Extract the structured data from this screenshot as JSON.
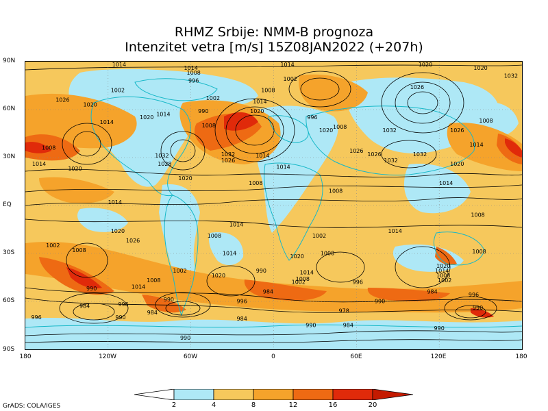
{
  "title_line1": "RHMZ Srbije: NMM-B prognoza",
  "title_line2": "Intenzitet vetra [m/s] 15Z08JAN2022 (+207h)",
  "lat_labels": [
    "90N",
    "60N",
    "30N",
    "EQ",
    "30S",
    "60S",
    "90S"
  ],
  "lon_labels": [
    "180",
    "120W",
    "60W",
    "0",
    "60E",
    "120E",
    "180"
  ],
  "colorbar": {
    "labels": [
      "2",
      "4",
      "8",
      "12",
      "16",
      "20"
    ],
    "colors": [
      "#ffffff",
      "#aee8f6",
      "#f6c85c",
      "#f5a32b",
      "#ee6a13",
      "#e02a0a",
      "#c41a00"
    ]
  },
  "isobar_labels": [
    {
      "text": "1014",
      "lon": -112,
      "lat": 88
    },
    {
      "text": "1014",
      "lon": -60,
      "lat": 86
    },
    {
      "text": "1008",
      "lon": -58,
      "lat": 83
    },
    {
      "text": "1014",
      "lon": 10,
      "lat": 88
    },
    {
      "text": "1020",
      "lon": 110,
      "lat": 88
    },
    {
      "text": "1020",
      "lon": 150,
      "lat": 86
    },
    {
      "text": "1032",
      "lon": 172,
      "lat": 81
    },
    {
      "text": "996",
      "lon": -58,
      "lat": 78
    },
    {
      "text": "1002",
      "lon": -113,
      "lat": 72
    },
    {
      "text": "1002",
      "lon": -44,
      "lat": 67
    },
    {
      "text": "1002",
      "lon": 12,
      "lat": 79
    },
    {
      "text": "1026",
      "lon": 104,
      "lat": 74
    },
    {
      "text": "1008",
      "lon": -4,
      "lat": 72
    },
    {
      "text": "1014",
      "lon": -10,
      "lat": 65
    },
    {
      "text": "1020",
      "lon": -12,
      "lat": 59
    },
    {
      "text": "990",
      "lon": -51,
      "lat": 59
    },
    {
      "text": "1014",
      "lon": -80,
      "lat": 57
    },
    {
      "text": "1020",
      "lon": -92,
      "lat": 55
    },
    {
      "text": "996",
      "lon": 28,
      "lat": 55
    },
    {
      "text": "1026",
      "lon": -153,
      "lat": 66
    },
    {
      "text": "1020",
      "lon": -133,
      "lat": 63
    },
    {
      "text": "1014",
      "lon": -121,
      "lat": 52
    },
    {
      "text": "1008",
      "lon": -47,
      "lat": 50
    },
    {
      "text": "1020",
      "lon": 38,
      "lat": 47
    },
    {
      "text": "1008",
      "lon": 48,
      "lat": 49
    },
    {
      "text": "1032",
      "lon": 84,
      "lat": 47
    },
    {
      "text": "1026",
      "lon": 133,
      "lat": 47
    },
    {
      "text": "1008",
      "lon": 154,
      "lat": 53
    },
    {
      "text": "1032",
      "lon": -33,
      "lat": 32
    },
    {
      "text": "1026",
      "lon": -33,
      "lat": 28
    },
    {
      "text": "1014",
      "lon": -8,
      "lat": 31
    },
    {
      "text": "1026",
      "lon": 60,
      "lat": 34
    },
    {
      "text": "1026",
      "lon": 73,
      "lat": 32
    },
    {
      "text": "1032",
      "lon": 106,
      "lat": 32
    },
    {
      "text": "1032",
      "lon": 85,
      "lat": 28
    },
    {
      "text": "1020",
      "lon": 133,
      "lat": 26
    },
    {
      "text": "1014",
      "lon": 147,
      "lat": 38
    },
    {
      "text": "1032",
      "lon": -81,
      "lat": 31
    },
    {
      "text": "1028",
      "lon": -79,
      "lat": 26
    },
    {
      "text": "1008",
      "lon": -163,
      "lat": 36
    },
    {
      "text": "1014",
      "lon": -170,
      "lat": 26
    },
    {
      "text": "1020",
      "lon": -144,
      "lat": 23
    },
    {
      "text": "1020",
      "lon": -64,
      "lat": 17
    },
    {
      "text": "1014",
      "lon": 7,
      "lat": 24
    },
    {
      "text": "1008",
      "lon": -13,
      "lat": 14
    },
    {
      "text": "1008",
      "lon": 45,
      "lat": 9
    },
    {
      "text": "1014",
      "lon": 125,
      "lat": 14
    },
    {
      "text": "1014",
      "lon": -115,
      "lat": 2
    },
    {
      "text": "1014",
      "lon": -27,
      "lat": -12
    },
    {
      "text": "1008",
      "lon": -43,
      "lat": -19
    },
    {
      "text": "1002",
      "lon": 33,
      "lat": -19
    },
    {
      "text": "1014",
      "lon": 88,
      "lat": -16
    },
    {
      "text": "1008",
      "lon": 148,
      "lat": -6
    },
    {
      "text": "1020",
      "lon": -113,
      "lat": -16
    },
    {
      "text": "1026",
      "lon": -102,
      "lat": -22
    },
    {
      "text": "1002",
      "lon": -160,
      "lat": -25
    },
    {
      "text": "1008",
      "lon": -141,
      "lat": -28
    },
    {
      "text": "1014",
      "lon": -32,
      "lat": -30
    },
    {
      "text": "1020",
      "lon": 17,
      "lat": -32
    },
    {
      "text": "1008",
      "lon": 39,
      "lat": -30
    },
    {
      "text": "1008",
      "lon": 149,
      "lat": -29
    },
    {
      "text": "1002",
      "lon": -68,
      "lat": -41
    },
    {
      "text": "1008",
      "lon": -87,
      "lat": -47
    },
    {
      "text": "1014",
      "lon": -98,
      "lat": -51
    },
    {
      "text": "1020",
      "lon": -40,
      "lat": -44
    },
    {
      "text": "990",
      "lon": -9,
      "lat": -41
    },
    {
      "text": "1014",
      "lon": 24,
      "lat": -42
    },
    {
      "text": "1008",
      "lon": 21,
      "lat": -46
    },
    {
      "text": "1002",
      "lon": 18,
      "lat": -48
    },
    {
      "text": "996",
      "lon": 61,
      "lat": -48
    },
    {
      "text": "1020",
      "lon": 123,
      "lat": -38
    },
    {
      "text": "1014",
      "lon": 122,
      "lat": -41
    },
    {
      "text": "1008",
      "lon": 123,
      "lat": -44
    },
    {
      "text": "1002",
      "lon": 124,
      "lat": -47
    },
    {
      "text": "984",
      "lon": -4,
      "lat": -54
    },
    {
      "text": "984",
      "lon": 115,
      "lat": -54
    },
    {
      "text": "990",
      "lon": -132,
      "lat": -52
    },
    {
      "text": "996",
      "lon": 145,
      "lat": -56
    },
    {
      "text": "984",
      "lon": -137,
      "lat": -63
    },
    {
      "text": "996",
      "lon": -109,
      "lat": -62
    },
    {
      "text": "990",
      "lon": -76,
      "lat": -59
    },
    {
      "text": "996",
      "lon": -23,
      "lat": -60
    },
    {
      "text": "990",
      "lon": 77,
      "lat": -60
    },
    {
      "text": "990",
      "lon": 148,
      "lat": -64
    },
    {
      "text": "984",
      "lon": -88,
      "lat": -67
    },
    {
      "text": "978",
      "lon": 51,
      "lat": -66
    },
    {
      "text": "984",
      "lon": -23,
      "lat": -71
    },
    {
      "text": "996",
      "lon": -172,
      "lat": -70
    },
    {
      "text": "990",
      "lon": -111,
      "lat": -70
    },
    {
      "text": "990",
      "lon": 27,
      "lat": -75
    },
    {
      "text": "984",
      "lon": 54,
      "lat": -75
    },
    {
      "text": "990",
      "lon": 120,
      "lat": -77
    },
    {
      "text": "990",
      "lon": -64,
      "lat": -83
    }
  ],
  "credit": "GrADS: COLA/IGES"
}
